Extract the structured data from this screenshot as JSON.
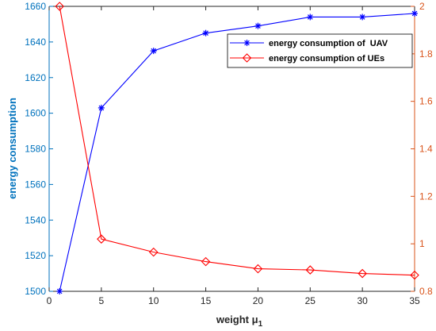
{
  "chart_data": {
    "type": "line",
    "title": "",
    "xlabel": "weight μ",
    "xlabel_sub": "1",
    "ylabel_left": "energy consumption",
    "ylabel_right": "",
    "xlim": [
      0,
      35
    ],
    "ylim_left": [
      1500,
      1660
    ],
    "ylim_right": [
      0.8,
      2.0
    ],
    "x_ticks": [
      0,
      5,
      10,
      15,
      20,
      25,
      30,
      35
    ],
    "y_left_ticks": [
      1500,
      1520,
      1540,
      1560,
      1580,
      1600,
      1620,
      1640,
      1660
    ],
    "y_right_ticks": [
      0.8,
      1.0,
      1.2,
      1.4,
      1.6,
      1.8,
      2.0
    ],
    "y_right_tick_labels": [
      "0.8",
      "1",
      "1.2",
      "1.4",
      "1.6",
      "1.8",
      "2"
    ],
    "grid": false,
    "legend_position": "top-right",
    "series": [
      {
        "name": "energy consumption of  UAV",
        "axis": "left",
        "color": "#0000ff",
        "marker": "asterisk",
        "x": [
          1,
          5,
          10,
          15,
          20,
          25,
          30,
          35
        ],
        "values": [
          1500,
          1603,
          1635,
          1645,
          1649,
          1654,
          1654,
          1656
        ]
      },
      {
        "name": "energy consumption of UEs",
        "axis": "right",
        "color": "#ff0000",
        "marker": "diamond",
        "x": [
          1,
          5,
          10,
          15,
          20,
          25,
          30,
          35
        ],
        "values": [
          2.0,
          1.02,
          0.965,
          0.925,
          0.895,
          0.89,
          0.875,
          0.868
        ]
      }
    ],
    "left_axis_color": "#0072bd",
    "right_axis_color": "#d95319"
  }
}
